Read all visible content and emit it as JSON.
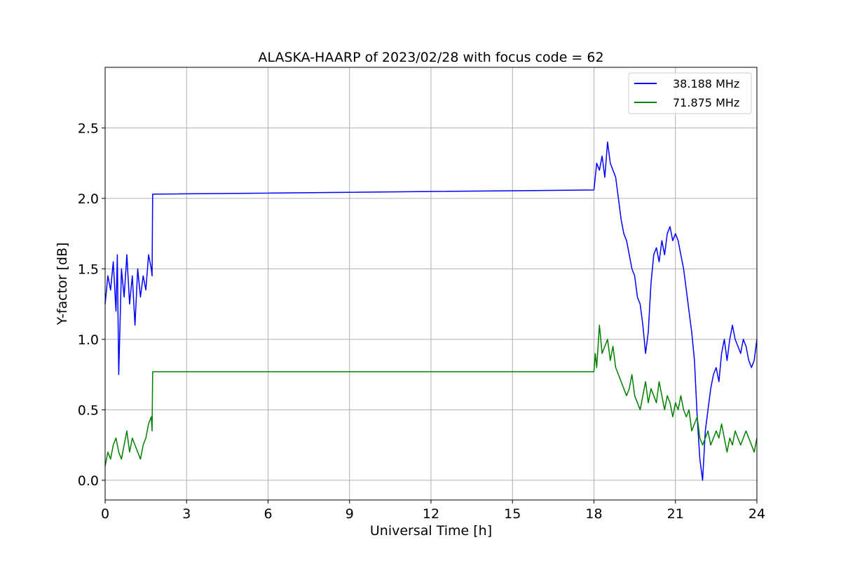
{
  "chart_data": {
    "type": "line",
    "title": "ALASKA-HAARP of 2023/02/28 with focus code = 62",
    "xlabel": "Universal Time [h]",
    "ylabel": "Y-factor [dB]",
    "xlim": [
      0,
      24
    ],
    "ylim": [
      -0.14,
      2.93
    ],
    "xticks": [
      0,
      3,
      6,
      9,
      12,
      15,
      18,
      21,
      24
    ],
    "xtick_labels": [
      "0",
      "3",
      "6",
      "9",
      "12",
      "15",
      "18",
      "21",
      "24"
    ],
    "yticks": [
      0.0,
      0.5,
      1.0,
      1.5,
      2.0,
      2.5
    ],
    "ytick_labels": [
      "0.0",
      "0.5",
      "1.0",
      "1.5",
      "2.0",
      "2.5"
    ],
    "grid": true,
    "legend_position": "top-right",
    "series": [
      {
        "name": "38.188 MHz",
        "color": "#0000ff",
        "x": [
          0.0,
          0.1,
          0.2,
          0.3,
          0.4,
          0.45,
          0.5,
          0.6,
          0.7,
          0.8,
          0.9,
          1.0,
          1.1,
          1.2,
          1.3,
          1.4,
          1.5,
          1.6,
          1.7,
          1.73,
          1.75,
          18.0,
          18.1,
          18.2,
          18.3,
          18.4,
          18.5,
          18.6,
          18.7,
          18.8,
          18.9,
          19.0,
          19.1,
          19.2,
          19.3,
          19.4,
          19.5,
          19.6,
          19.7,
          19.8,
          19.9,
          20.0,
          20.1,
          20.2,
          20.3,
          20.4,
          20.5,
          20.6,
          20.7,
          20.8,
          20.9,
          21.0,
          21.1,
          21.2,
          21.3,
          21.4,
          21.5,
          21.6,
          21.7,
          21.8,
          21.9,
          22.0,
          22.1,
          22.2,
          22.3,
          22.4,
          22.5,
          22.6,
          22.7,
          22.8,
          22.9,
          23.0,
          23.1,
          23.2,
          23.3,
          23.4,
          23.5,
          23.6,
          23.7,
          23.8,
          23.9,
          24.0
        ],
        "y": [
          1.25,
          1.45,
          1.35,
          1.55,
          1.2,
          1.6,
          0.75,
          1.5,
          1.3,
          1.6,
          1.25,
          1.45,
          1.1,
          1.5,
          1.3,
          1.45,
          1.35,
          1.6,
          1.5,
          1.45,
          2.03,
          2.06,
          2.25,
          2.2,
          2.3,
          2.15,
          2.4,
          2.25,
          2.2,
          2.15,
          2.0,
          1.85,
          1.75,
          1.7,
          1.6,
          1.5,
          1.45,
          1.3,
          1.25,
          1.1,
          0.9,
          1.05,
          1.4,
          1.6,
          1.65,
          1.55,
          1.7,
          1.6,
          1.75,
          1.8,
          1.7,
          1.75,
          1.7,
          1.6,
          1.5,
          1.35,
          1.2,
          1.05,
          0.85,
          0.45,
          0.15,
          0.0,
          0.35,
          0.5,
          0.65,
          0.75,
          0.8,
          0.7,
          0.9,
          1.0,
          0.85,
          1.0,
          1.1,
          1.0,
          0.95,
          0.9,
          1.0,
          0.95,
          0.85,
          0.8,
          0.85,
          1.0
        ]
      },
      {
        "name": "71.875 MHz",
        "color": "#008000",
        "x": [
          0.0,
          0.1,
          0.2,
          0.3,
          0.4,
          0.5,
          0.6,
          0.7,
          0.8,
          0.9,
          1.0,
          1.1,
          1.2,
          1.3,
          1.4,
          1.5,
          1.6,
          1.7,
          1.73,
          1.75,
          18.0,
          18.05,
          18.1,
          18.2,
          18.3,
          18.4,
          18.5,
          18.6,
          18.7,
          18.8,
          18.9,
          19.0,
          19.1,
          19.2,
          19.3,
          19.4,
          19.5,
          19.6,
          19.7,
          19.8,
          19.9,
          20.0,
          20.1,
          20.2,
          20.3,
          20.4,
          20.5,
          20.6,
          20.7,
          20.8,
          20.9,
          21.0,
          21.1,
          21.2,
          21.3,
          21.4,
          21.5,
          21.6,
          21.7,
          21.8,
          21.9,
          22.0,
          22.1,
          22.2,
          22.3,
          22.4,
          22.5,
          22.6,
          22.7,
          22.8,
          22.9,
          23.0,
          23.1,
          23.2,
          23.3,
          23.4,
          23.5,
          23.6,
          23.7,
          23.8,
          23.9,
          24.0
        ],
        "y": [
          0.1,
          0.2,
          0.15,
          0.25,
          0.3,
          0.2,
          0.15,
          0.25,
          0.35,
          0.2,
          0.3,
          0.25,
          0.2,
          0.15,
          0.25,
          0.3,
          0.4,
          0.45,
          0.35,
          0.77,
          0.77,
          0.9,
          0.8,
          1.1,
          0.9,
          0.95,
          1.0,
          0.85,
          0.95,
          0.8,
          0.75,
          0.7,
          0.65,
          0.6,
          0.65,
          0.75,
          0.6,
          0.55,
          0.5,
          0.6,
          0.7,
          0.55,
          0.65,
          0.6,
          0.55,
          0.7,
          0.6,
          0.5,
          0.6,
          0.55,
          0.45,
          0.55,
          0.5,
          0.6,
          0.5,
          0.45,
          0.5,
          0.35,
          0.4,
          0.45,
          0.3,
          0.25,
          0.3,
          0.35,
          0.25,
          0.3,
          0.35,
          0.3,
          0.4,
          0.3,
          0.2,
          0.3,
          0.25,
          0.35,
          0.3,
          0.25,
          0.3,
          0.35,
          0.3,
          0.25,
          0.2,
          0.3
        ]
      }
    ]
  }
}
